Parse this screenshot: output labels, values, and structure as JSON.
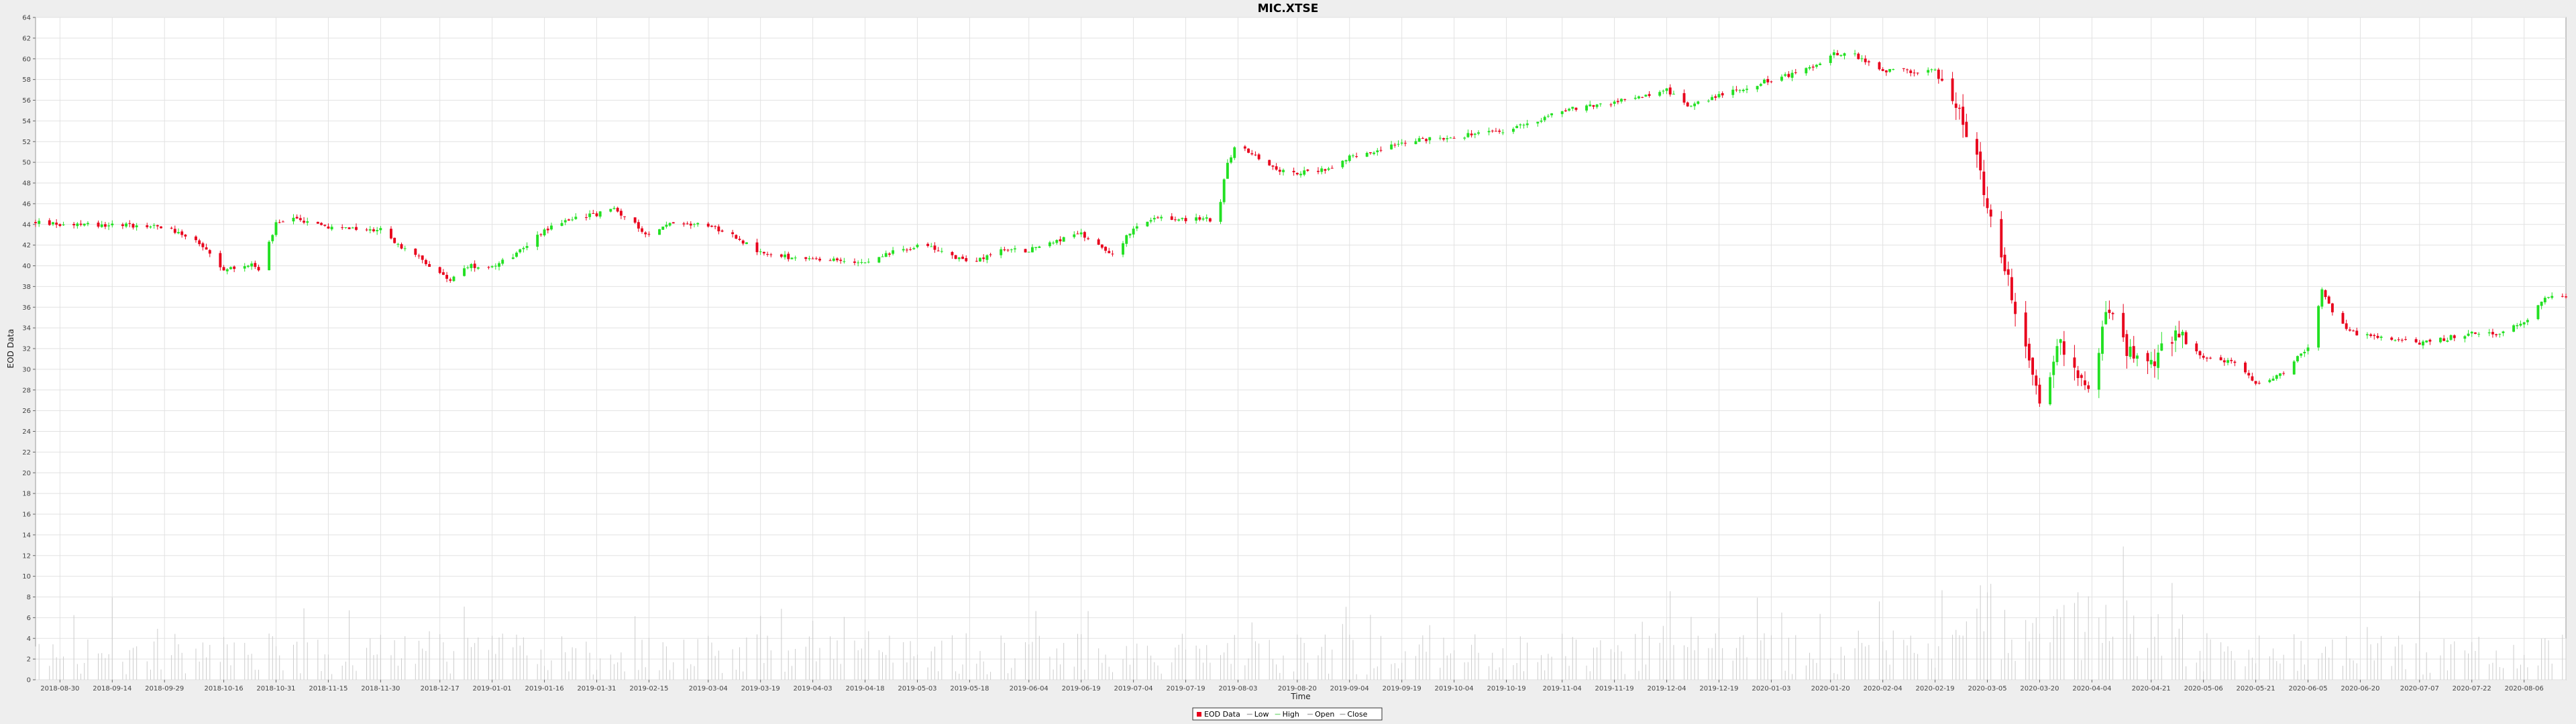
{
  "chart_data": {
    "type": "candlestick",
    "title": "MIC.XTSE",
    "xlabel": "Time",
    "ylabel": "EOD Data",
    "ylim": [
      0,
      64
    ],
    "y_ticks": [
      0,
      2,
      4,
      6,
      8,
      10,
      12,
      14,
      16,
      18,
      20,
      22,
      24,
      26,
      28,
      30,
      32,
      34,
      36,
      38,
      40,
      42,
      44,
      46,
      48,
      50,
      52,
      54,
      56,
      58,
      60,
      62,
      64
    ],
    "x_range": [
      "2018-08-23",
      "2020-08-18"
    ],
    "x_ticks": [
      "2018-08-30",
      "2018-09-14",
      "2018-09-29",
      "2018-10-16",
      "2018-10-31",
      "2018-11-15",
      "2018-11-30",
      "2018-12-17",
      "2019-01-01",
      "2019-01-16",
      "2019-01-31",
      "2019-02-15",
      "2019-03-04",
      "2019-03-19",
      "2019-04-03",
      "2019-04-18",
      "2019-05-03",
      "2019-05-18",
      "2019-06-04",
      "2019-06-19",
      "2019-07-04",
      "2019-07-19",
      "2019-08-03",
      "2019-08-20",
      "2019-09-04",
      "2019-09-19",
      "2019-10-04",
      "2019-10-19",
      "2019-11-04",
      "2019-11-19",
      "2019-12-04",
      "2019-12-19",
      "2020-01-03",
      "2020-01-20",
      "2020-02-04",
      "2020-02-19",
      "2020-03-05",
      "2020-03-20",
      "2020-04-04",
      "2020-04-21",
      "2020-05-06",
      "2020-05-21",
      "2020-06-05",
      "2020-06-20",
      "2020-07-07",
      "2020-07-22",
      "2020-08-06"
    ],
    "grid": true,
    "legend_position": "bottom",
    "legend": [
      "EOD Data",
      "Low",
      "High",
      "Open",
      "Close"
    ],
    "colors": {
      "up": "#22e022",
      "down": "#e8001c",
      "volume": "#cccccc",
      "grid": "#e2e2e2",
      "frame": "#999999",
      "plot_bg": "#ffffff",
      "page_bg": "#eeeeee"
    },
    "price_path": [
      [
        "2018-08-23",
        44.2
      ],
      [
        "2018-08-30",
        44.0
      ],
      [
        "2018-09-14",
        44.0
      ],
      [
        "2018-09-29",
        43.8
      ],
      [
        "2018-10-08",
        42.5
      ],
      [
        "2018-10-16",
        39.5
      ],
      [
        "2018-10-24",
        40.3
      ],
      [
        "2018-10-26",
        39.5
      ],
      [
        "2018-10-31",
        44.0
      ],
      [
        "2018-11-05",
        44.6
      ],
      [
        "2018-11-15",
        43.7
      ],
      [
        "2018-11-25",
        43.5
      ],
      [
        "2018-11-30",
        43.5
      ],
      [
        "2018-12-05",
        42.0
      ],
      [
        "2018-12-17",
        39.5
      ],
      [
        "2018-12-20",
        38.5
      ],
      [
        "2018-12-25",
        40.0
      ],
      [
        "2019-01-01",
        40.0
      ],
      [
        "2019-01-08",
        41.2
      ],
      [
        "2019-01-16",
        43.5
      ],
      [
        "2019-01-25",
        44.7
      ],
      [
        "2019-01-31",
        45.0
      ],
      [
        "2019-02-05",
        45.5
      ],
      [
        "2019-02-15",
        43.0
      ],
      [
        "2019-02-22",
        44.2
      ],
      [
        "2019-03-04",
        44.0
      ],
      [
        "2019-03-12",
        42.8
      ],
      [
        "2019-03-19",
        41.2
      ],
      [
        "2019-04-03",
        40.5
      ],
      [
        "2019-04-18",
        40.5
      ],
      [
        "2019-04-28",
        41.5
      ],
      [
        "2019-05-03",
        42.0
      ],
      [
        "2019-05-10",
        41.5
      ],
      [
        "2019-05-18",
        40.2
      ],
      [
        "2019-05-26",
        41.5
      ],
      [
        "2019-06-04",
        41.5
      ],
      [
        "2019-06-12",
        42.5
      ],
      [
        "2019-06-19",
        43.0
      ],
      [
        "2019-06-28",
        41.2
      ],
      [
        "2019-07-04",
        43.5
      ],
      [
        "2019-07-10",
        44.5
      ],
      [
        "2019-07-19",
        44.5
      ],
      [
        "2019-07-28",
        44.5
      ],
      [
        "2019-07-31",
        50.0
      ],
      [
        "2019-08-03",
        52.0
      ],
      [
        "2019-08-08",
        50.5
      ],
      [
        "2019-08-15",
        49.3
      ],
      [
        "2019-08-20",
        49.0
      ],
      [
        "2019-08-28",
        49.3
      ],
      [
        "2019-09-04",
        50.5
      ],
      [
        "2019-09-12",
        51.0
      ],
      [
        "2019-09-19",
        52.0
      ],
      [
        "2019-09-28",
        52.3
      ],
      [
        "2019-10-04",
        52.5
      ],
      [
        "2019-10-19",
        53.0
      ],
      [
        "2019-11-04",
        55.0
      ],
      [
        "2019-11-19",
        55.8
      ],
      [
        "2019-12-04",
        57.0
      ],
      [
        "2019-12-10",
        55.5
      ],
      [
        "2019-12-19",
        56.5
      ],
      [
        "2020-01-03",
        58.0
      ],
      [
        "2020-01-14",
        59.0
      ],
      [
        "2020-01-20",
        60.5
      ],
      [
        "2020-01-26",
        60.5
      ],
      [
        "2020-02-04",
        58.8
      ],
      [
        "2020-02-10",
        58.8
      ],
      [
        "2020-02-19",
        58.8
      ],
      [
        "2020-02-24",
        56.0
      ],
      [
        "2020-03-02",
        50.5
      ],
      [
        "2020-03-05",
        45.0
      ],
      [
        "2020-03-10",
        40.0
      ],
      [
        "2020-03-16",
        32.0
      ],
      [
        "2020-03-20",
        26.5
      ],
      [
        "2020-03-26",
        32.5
      ],
      [
        "2020-04-01",
        28.5
      ],
      [
        "2020-04-04",
        27.5
      ],
      [
        "2020-04-08",
        36.0
      ],
      [
        "2020-04-14",
        32.0
      ],
      [
        "2020-04-21",
        30.5
      ],
      [
        "2020-04-28",
        33.5
      ],
      [
        "2020-05-06",
        31.0
      ],
      [
        "2020-05-14",
        30.8
      ],
      [
        "2020-05-21",
        28.8
      ],
      [
        "2020-05-28",
        29.5
      ],
      [
        "2020-06-05",
        32.0
      ],
      [
        "2020-06-09",
        37.5
      ],
      [
        "2020-06-14",
        34.5
      ],
      [
        "2020-06-20",
        33.3
      ],
      [
        "2020-07-07",
        32.5
      ],
      [
        "2020-07-15",
        33.0
      ],
      [
        "2020-07-22",
        33.5
      ],
      [
        "2020-07-30",
        33.5
      ],
      [
        "2020-08-06",
        34.5
      ],
      [
        "2020-08-12",
        37.0
      ],
      [
        "2020-08-18",
        37.0
      ]
    ]
  }
}
